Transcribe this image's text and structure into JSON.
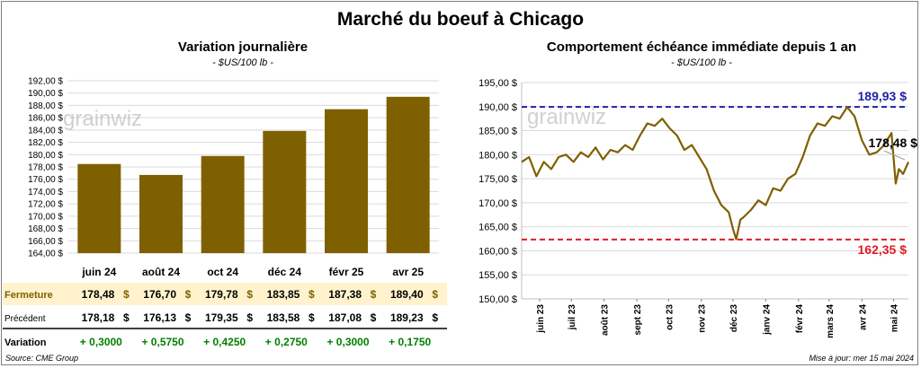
{
  "title": "Marché du boeuf à Chicago",
  "colors": {
    "bar": "#7f6000",
    "line": "#7f6000",
    "high": "#2121a8",
    "low": "#e01b24",
    "positive": "#008000",
    "band": "#fff2cc"
  },
  "left_panel": {
    "title": "Variation  journalière",
    "unit": "- $US/100 lb -",
    "watermark": "grainwiz",
    "row_labels": {
      "fermeture": "Fermeture",
      "precedent": "Précédent",
      "variation": "Variation"
    },
    "currency": "$",
    "precedent": [
      "178,18",
      "176,13",
      "179,35",
      "183,58",
      "187,08",
      "189,23"
    ],
    "variation": [
      "+ 0,3000",
      "+ 0,5750",
      "+ 0,4250",
      "+ 0,2750",
      "+ 0,3000",
      "+ 0,1750"
    ]
  },
  "right_panel": {
    "title": "Comportement  échéance immédiate depuis 1 an",
    "unit": "- $US/100 lb -",
    "watermark": "grainwiz",
    "high_label": "189,93 $",
    "low_label": "162,35 $",
    "last_label": "178,48 $"
  },
  "chart_data": [
    {
      "type": "bar",
      "title": "Variation  journalière",
      "subtitle": "- $US/100 lb -",
      "categories": [
        "juin 24",
        "août 24",
        "oct 24",
        "déc 24",
        "févr 25",
        "avr 25"
      ],
      "values": [
        178.48,
        176.7,
        179.78,
        183.85,
        187.38,
        189.4
      ],
      "value_labels": [
        "178,48",
        "176,70",
        "179,78",
        "183,85",
        "187,38",
        "189,40"
      ],
      "ylim": [
        164,
        192
      ],
      "ytick_labels": [
        "164,00 $",
        "166,00 $",
        "168,00 $",
        "170,00 $",
        "172,00 $",
        "174,00 $",
        "176,00 $",
        "178,00 $",
        "180,00 $",
        "182,00 $",
        "184,00 $",
        "186,00 $",
        "188,00 $",
        "190,00 $",
        "192,00 $"
      ],
      "grid": true
    },
    {
      "type": "line",
      "title": "Comportement  échéance immédiate depuis 1 an",
      "subtitle": "- $US/100 lb -",
      "ylim": [
        150,
        195
      ],
      "ytick_labels": [
        "150,00 $",
        "155,00 $",
        "160,00 $",
        "165,00 $",
        "170,00 $",
        "175,00 $",
        "180,00 $",
        "185,00 $",
        "190,00 $",
        "195,00 $"
      ],
      "x_tick_labels": [
        "juin 23",
        "juil 23",
        "août 23",
        "sept 23",
        "oct 23",
        "nov 23",
        "déc 23",
        "janv 24",
        "févr 24",
        "mars 24",
        "avr 24",
        "mai 24"
      ],
      "x_range": [
        "2023-05-15",
        "2024-05-15"
      ],
      "reference_lines": [
        {
          "name": "max",
          "value": 189.93,
          "style": "dashed",
          "color": "#2121a8"
        },
        {
          "name": "min",
          "value": 162.35,
          "style": "dashed",
          "color": "#e01b24"
        }
      ],
      "last_value": 178.48,
      "grid": true,
      "series": [
        {
          "x": [
            "2023-05-15",
            "2023-05-22",
            "2023-05-29",
            "2023-06-05",
            "2023-06-12",
            "2023-06-19",
            "2023-06-26",
            "2023-07-03",
            "2023-07-10",
            "2023-07-17",
            "2023-07-24",
            "2023-07-31",
            "2023-08-07",
            "2023-08-14",
            "2023-08-21",
            "2023-08-28",
            "2023-09-04",
            "2023-09-11",
            "2023-09-18",
            "2023-09-25",
            "2023-10-02",
            "2023-10-09",
            "2023-10-16",
            "2023-10-23",
            "2023-10-30",
            "2023-11-06",
            "2023-11-13",
            "2023-11-20",
            "2023-11-27",
            "2023-12-01",
            "2023-12-04",
            "2023-12-08",
            "2023-12-11",
            "2023-12-18",
            "2023-12-25",
            "2024-01-01",
            "2024-01-08",
            "2024-01-15",
            "2024-01-22",
            "2024-01-29",
            "2024-02-05",
            "2024-02-12",
            "2024-02-19",
            "2024-02-26",
            "2024-03-04",
            "2024-03-11",
            "2024-03-18",
            "2024-03-25",
            "2024-04-01",
            "2024-04-08",
            "2024-04-15",
            "2024-04-22",
            "2024-04-29",
            "2024-05-03",
            "2024-05-06",
            "2024-05-10",
            "2024-05-15"
          ],
          "y": [
            178.5,
            179.5,
            175.5,
            178.5,
            177.0,
            179.5,
            180.0,
            178.5,
            180.5,
            179.5,
            181.5,
            179.0,
            181.0,
            180.5,
            182.0,
            181.0,
            184.0,
            186.5,
            186.0,
            187.5,
            185.5,
            184.0,
            181.0,
            182.0,
            179.5,
            177.0,
            172.5,
            169.5,
            168.0,
            164.5,
            162.4,
            166.5,
            167.0,
            168.5,
            170.5,
            169.5,
            173.0,
            172.5,
            175.0,
            176.0,
            179.5,
            184.0,
            186.5,
            186.0,
            188.0,
            187.5,
            189.9,
            188.0,
            183.0,
            180.0,
            180.5,
            182.0,
            184.5,
            174.0,
            177.0,
            176.0,
            178.48
          ]
        }
      ]
    }
  ]
}
